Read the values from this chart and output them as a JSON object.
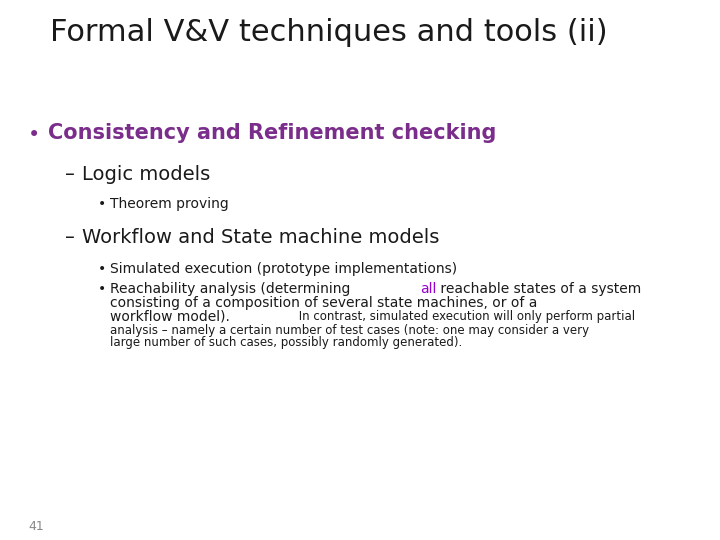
{
  "title": "Formal V&V techniques and tools (ii)",
  "title_fontsize": 22,
  "title_color": "#1a1a1a",
  "background_color": "#ffffff",
  "slide_number": "41",
  "slide_number_color": "#888888",
  "slide_number_fontsize": 9,
  "bullet1_color": "#7B2D8B",
  "bullet1_text": "Consistency and Refinement checking",
  "bullet1_fontsize": 15,
  "sub1_text": "Logic models",
  "sub1_fontsize": 14,
  "sub1_color": "#1a1a1a",
  "sub1a_text": "Theorem proving",
  "sub1a_fontsize": 10,
  "sub1a_color": "#1a1a1a",
  "sub2_text": "Workflow and State machine models",
  "sub2_fontsize": 14,
  "sub2_color": "#1a1a1a",
  "sub2a_text": "Simulated execution (prototype implementations)",
  "sub2a_fontsize": 10,
  "sub2a_color": "#1a1a1a",
  "sub2b_pre": "Reachability analysis (determining ",
  "sub2b_highlight": "all",
  "sub2b_post": " reachable states of a system",
  "sub2b_line2": "consisting of a composition of several state machines, or of a",
  "sub2b_line3_large": "workflow model).",
  "sub2b_line3_small": " In contrast, simulated execution will only perform partial",
  "sub2b_line4": "analysis – namely a certain number of test cases (note: one may consider a very",
  "sub2b_line5": "large number of such cases, possibly randomly generated).",
  "sub2b_fontsize": 10,
  "sub2b_small_fontsize": 8.5,
  "sub2b_color": "#1a1a1a",
  "highlight_color": "#9900CC",
  "font_family": "DejaVu Sans"
}
